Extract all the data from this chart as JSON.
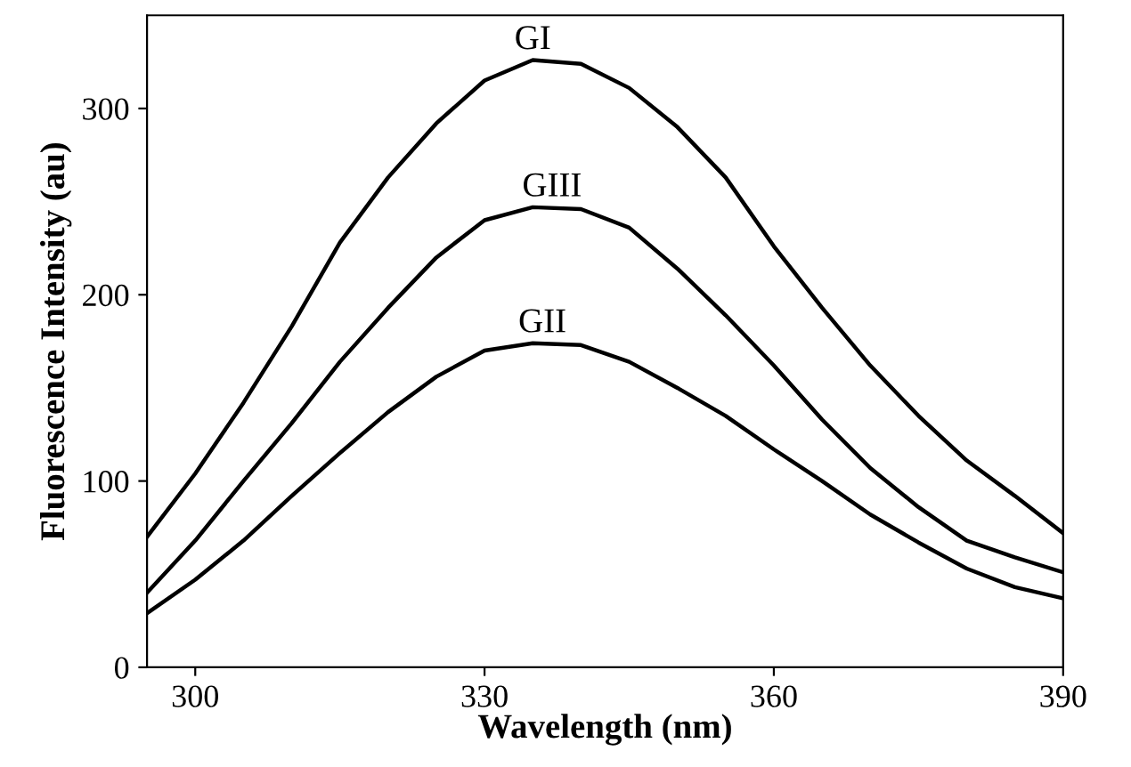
{
  "chart_data": {
    "type": "line",
    "xlabel": "Wavelength (nm)",
    "ylabel": "Fluorescence Intensity (au)",
    "x": [
      295,
      300,
      305,
      310,
      315,
      320,
      325,
      330,
      335,
      340,
      345,
      350,
      355,
      360,
      365,
      370,
      375,
      380,
      385,
      390
    ],
    "series": [
      {
        "color": "#000000",
        "values": [
          70,
          104,
          142,
          183,
          228,
          263,
          292,
          315,
          326,
          324,
          311,
          290,
          263,
          226,
          193,
          162,
          135,
          111,
          92,
          72
        ]
      },
      {
        "color": "#000000",
        "values": [
          40,
          68,
          100,
          131,
          164,
          193,
          220,
          240,
          247,
          246,
          236,
          214,
          189,
          162,
          133,
          107,
          86,
          68,
          59,
          51
        ]
      },
      {
        "color": "#000000",
        "values": [
          29,
          47,
          68,
          92,
          115,
          137,
          156,
          170,
          174,
          173,
          164,
          150,
          135,
          117,
          100,
          82,
          67,
          53,
          43,
          37
        ]
      }
    ],
    "annotations": [
      {
        "text": "GI",
        "x": 335,
        "y": 326
      },
      {
        "text": "GIII",
        "x": 337,
        "y": 247
      },
      {
        "text": "GII",
        "x": 336,
        "y": 174
      }
    ],
    "xlim": [
      295,
      390
    ],
    "ylim": [
      0,
      350
    ],
    "xticks": [
      300,
      330,
      360,
      390
    ],
    "yticks": [
      0,
      100,
      200,
      300
    ],
    "grid": false,
    "legend": false,
    "marker": "none",
    "line_style": "solid"
  }
}
